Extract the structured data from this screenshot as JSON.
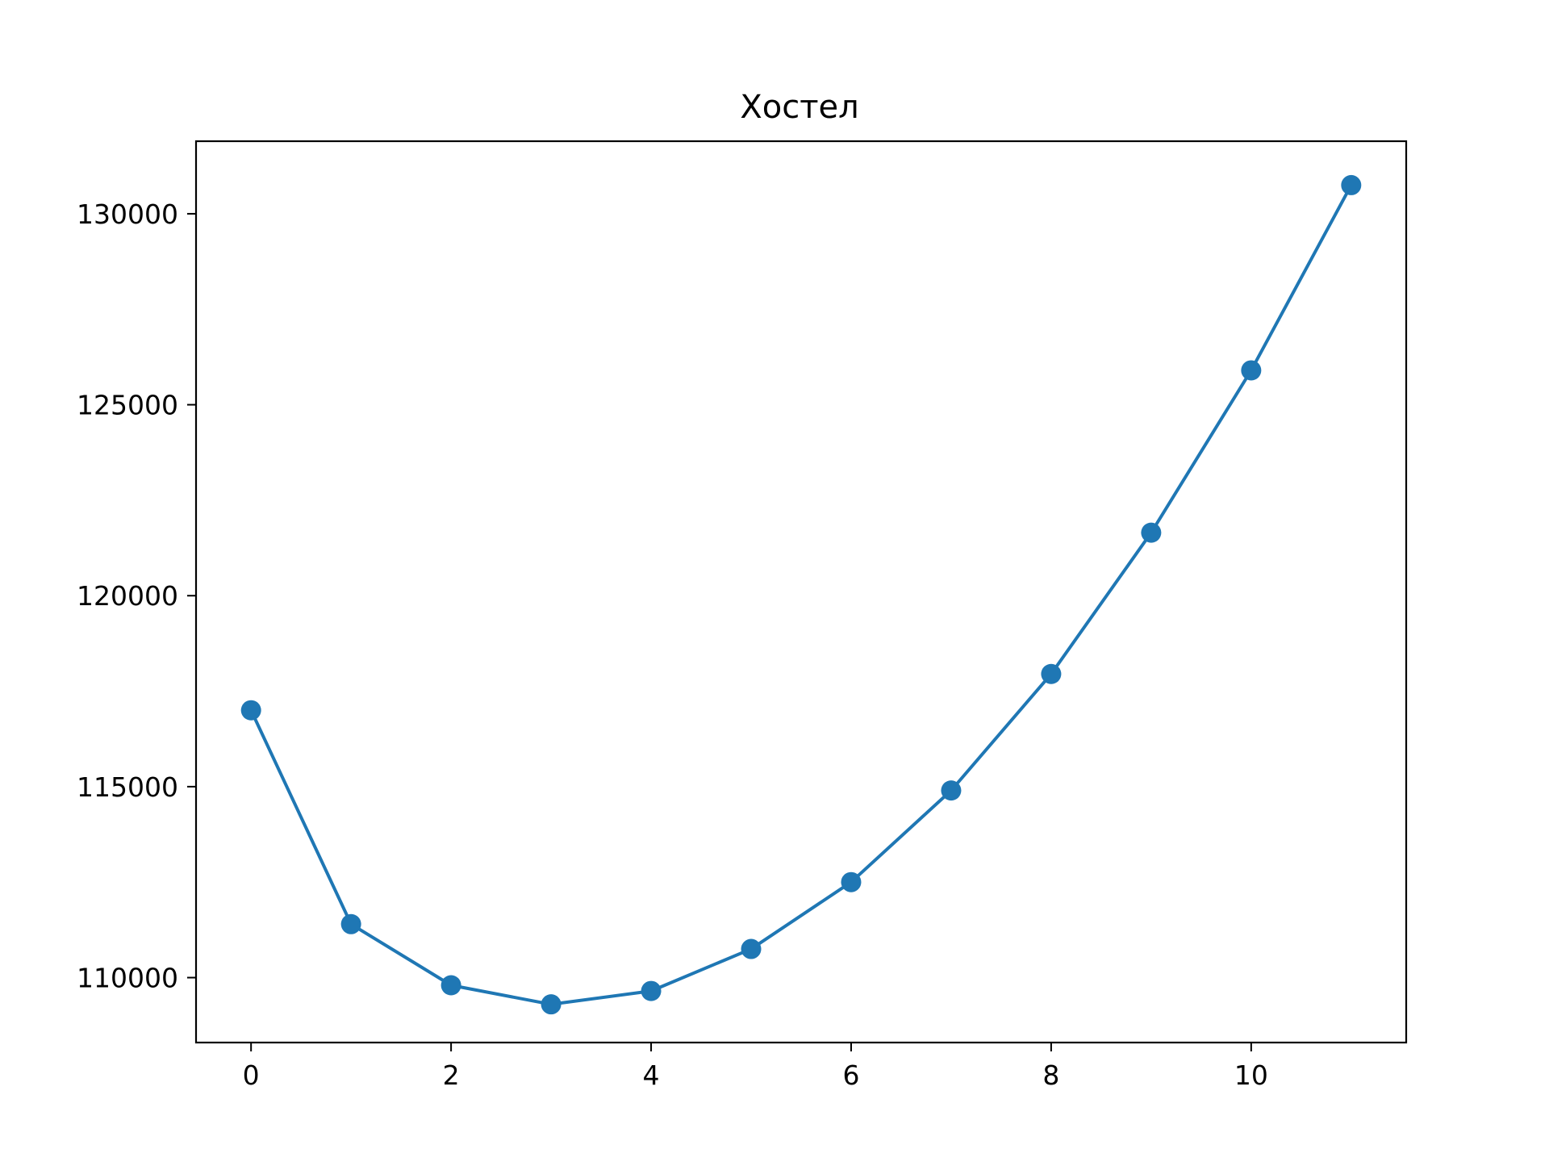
{
  "chart_data": {
    "type": "line",
    "title": "Хостел",
    "xlabel": "",
    "ylabel": "",
    "x": [
      0,
      1,
      2,
      3,
      4,
      5,
      6,
      7,
      8,
      9,
      10,
      11
    ],
    "series": [
      {
        "values": [
          117000,
          111400,
          109800,
          109300,
          109650,
          110750,
          112500,
          114900,
          117950,
          121650,
          125900,
          130750
        ],
        "color": "#1f77b4",
        "marker": "circle"
      }
    ],
    "xlim": [
      -0.55,
      11.55
    ],
    "ylim": [
      108300,
      131900
    ],
    "x_ticks": [
      "0",
      "2",
      "4",
      "6",
      "8",
      "10"
    ],
    "y_ticks": [
      "110000",
      "115000",
      "120000",
      "125000",
      "130000"
    ],
    "grid": false,
    "legend": "none"
  }
}
